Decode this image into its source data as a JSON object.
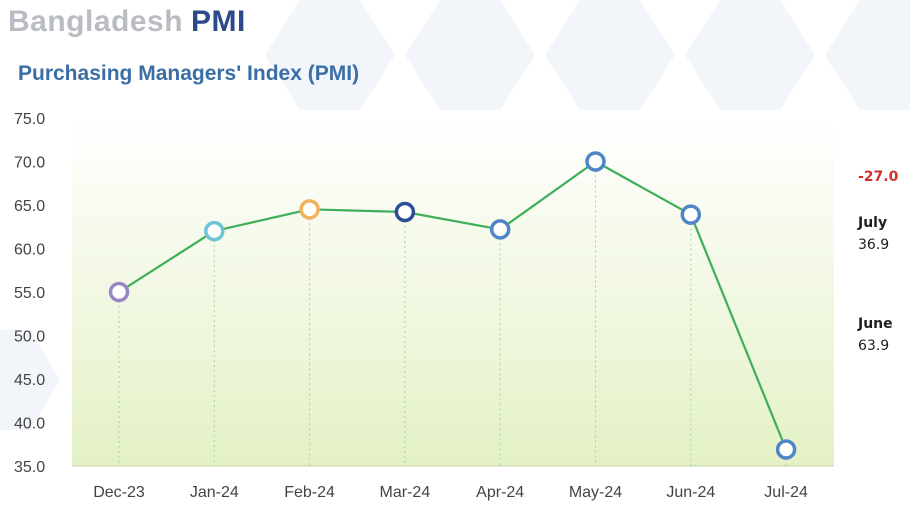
{
  "header": {
    "country": "Bangladesh",
    "product": "PMI"
  },
  "chart_data": {
    "type": "line",
    "title": "Purchasing Managers' Index (PMI)",
    "xlabel": "",
    "ylabel": "",
    "categories": [
      "Dec-23",
      "Jan-24",
      "Feb-24",
      "Mar-24",
      "Apr-24",
      "May-24",
      "Jun-24",
      "Jul-24"
    ],
    "series": [
      {
        "values": [
          55.0,
          62.0,
          64.5,
          64.2,
          62.2,
          70.0,
          63.9,
          36.9
        ]
      }
    ],
    "ylim": [
      35,
      75
    ],
    "yticks": [
      "35.0",
      "40.0",
      "45.0",
      "50.0",
      "55.0",
      "60.0",
      "65.0",
      "70.0",
      "75.0"
    ],
    "grid": "vertical dotted lines at each category",
    "line_color": "#3fae5a",
    "marker_colors": [
      "#9a86c4",
      "#6cc4d4",
      "#f2b15e",
      "#2b4c97",
      "#4f86c6",
      "#4f86c6",
      "#4f86c6",
      "#4f86c6"
    ],
    "annotations": {
      "change": "-27.0",
      "july": {
        "label": "July",
        "value": "36.9"
      },
      "june": {
        "label": "June",
        "value": "63.9"
      }
    }
  }
}
